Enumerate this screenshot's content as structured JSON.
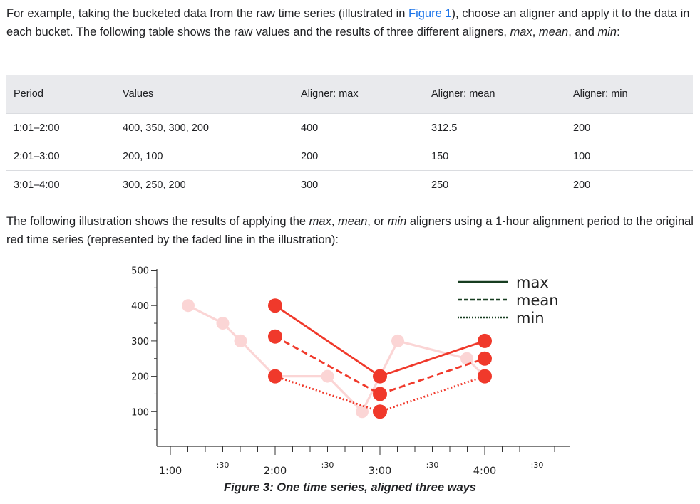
{
  "intro": {
    "part1": "For example, taking the bucketed data from the raw time series (illustrated in ",
    "link": "Figure 1",
    "part2": "), choose an aligner and apply it to the data in each bucket. The following table shows the raw values and the results of three different aligners, ",
    "max": "max",
    "comma": ", ",
    "mean": "mean",
    "and": ", and ",
    "min": "min",
    "colon": ":"
  },
  "table": {
    "headers": [
      "Period",
      "Values",
      "Aligner: max",
      "Aligner: mean",
      "Aligner: min"
    ],
    "rows": [
      [
        "1:01–2:00",
        "400, 350, 300, 200",
        "400",
        "312.5",
        "200"
      ],
      [
        "2:01–3:00",
        "200, 100",
        "200",
        "150",
        "100"
      ],
      [
        "3:01–4:00",
        "300, 250, 200",
        "300",
        "250",
        "200"
      ]
    ]
  },
  "outro": {
    "part1": "The following illustration shows the results of applying the ",
    "max": "max",
    "c1": ", ",
    "mean": "mean",
    "c2": ", or ",
    "min": "min",
    "part2": " aligners using a 1-hour alignment period to the original red time series (represented by the faded line in the illustration):"
  },
  "caption": "Figure 3: One time series, aligned three ways",
  "chart_data": {
    "type": "line",
    "y_ticks": [
      100,
      200,
      300,
      400,
      500
    ],
    "x_ticks": [
      {
        "t": 1.0,
        "label": "1:00"
      },
      {
        "t": 1.5,
        "label": ":30"
      },
      {
        "t": 2.0,
        "label": "2:00"
      },
      {
        "t": 2.5,
        "label": ":30"
      },
      {
        "t": 3.0,
        "label": "3:00"
      },
      {
        "t": 3.5,
        "label": ":30"
      },
      {
        "t": 4.0,
        "label": "4:00"
      },
      {
        "t": 4.5,
        "label": ":30"
      }
    ],
    "ylim": [
      0,
      500
    ],
    "xlim": [
      0.9,
      4.8
    ],
    "legend_position": "top-right",
    "colors": {
      "aligned": "#f0392b",
      "raw": "#fbd5d5",
      "legend": "#173d20"
    },
    "raw_series": {
      "x": [
        1.17,
        1.5,
        1.67,
        2.0,
        2.5,
        2.83,
        3.0,
        3.17,
        3.83,
        4.0
      ],
      "y": [
        400,
        350,
        300,
        200,
        200,
        100,
        200,
        300,
        250,
        200
      ]
    },
    "series": [
      {
        "name": "max",
        "style": "solid",
        "x": [
          2.0,
          3.0,
          4.0
        ],
        "y": [
          400,
          200,
          300
        ]
      },
      {
        "name": "mean",
        "style": "dashed",
        "x": [
          2.0,
          3.0,
          4.0
        ],
        "y": [
          312.5,
          150,
          250
        ]
      },
      {
        "name": "min",
        "style": "dotted",
        "x": [
          2.0,
          3.0,
          4.0
        ],
        "y": [
          200,
          100,
          200
        ]
      }
    ]
  }
}
